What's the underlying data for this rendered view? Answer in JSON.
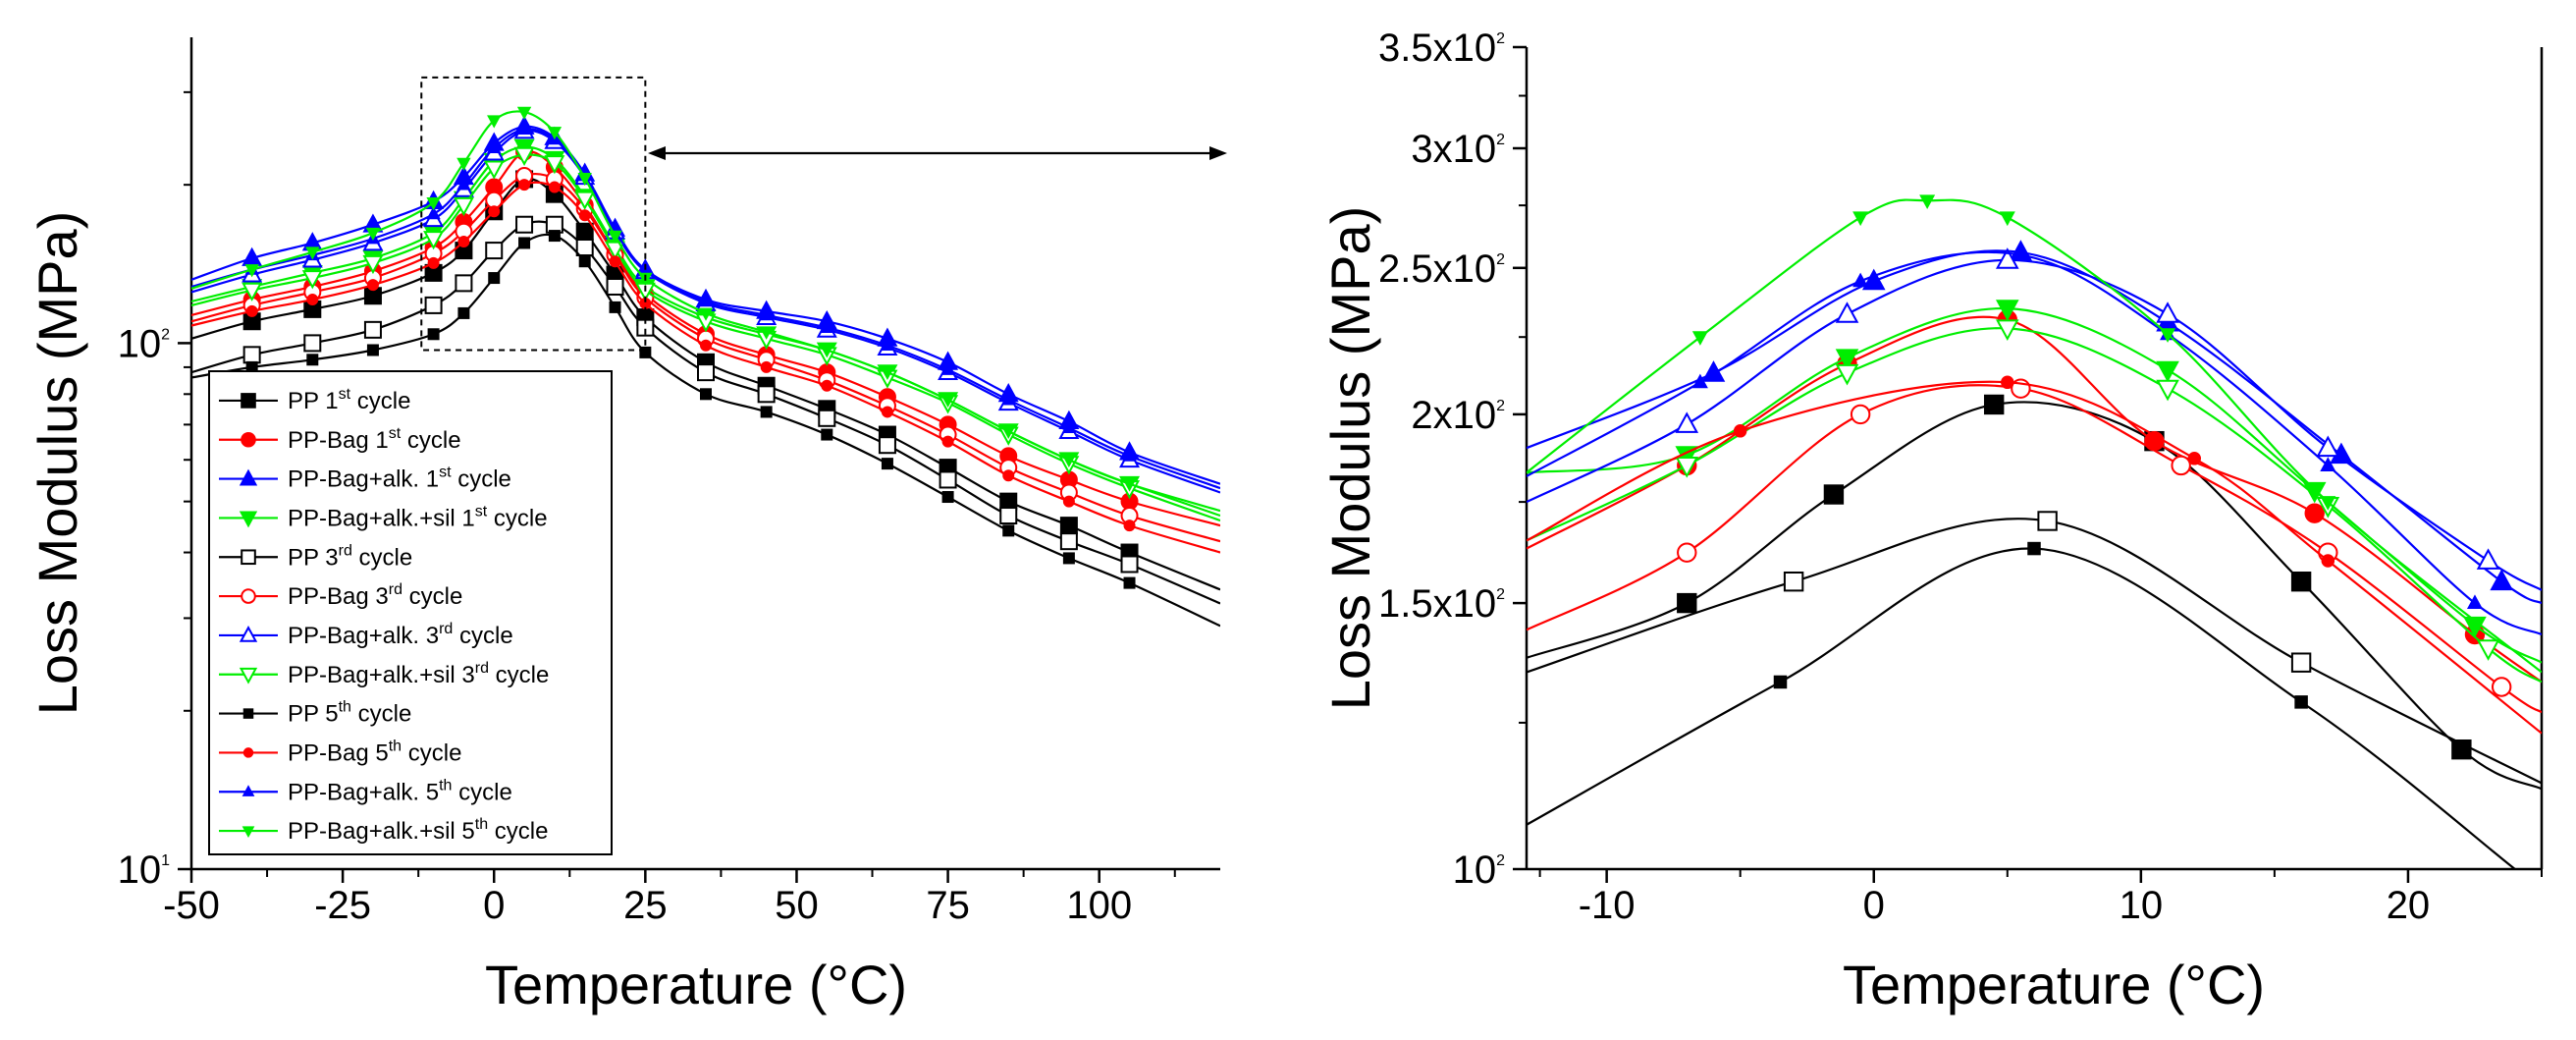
{
  "chart_data": [
    {
      "type": "line",
      "panel": "left",
      "title": "",
      "xlabel": "Temperature (°C)",
      "ylabel": "Loss Modulus (MPa)",
      "x_scale": "linear",
      "y_scale": "log",
      "xlim": [
        -50,
        120
      ],
      "ylim": [
        10,
        350
      ],
      "x_ticks": [
        -50,
        -25,
        0,
        25,
        50,
        75,
        100
      ],
      "x_tick_labels": [
        "-50",
        "-25",
        "0",
        "25",
        "50",
        "75",
        "100"
      ],
      "y_ticks": [
        10,
        100
      ],
      "y_tick_labels": [
        {
          "base": "10",
          "exp": "1"
        },
        {
          "base": "10",
          "exp": "2"
        }
      ],
      "legend_position": "bottom-left",
      "inset_box": {
        "x_range": [
          -12,
          25
        ],
        "y_range": [
          97,
          320
        ]
      },
      "series": [
        {
          "name": "PP 1st cycle",
          "label_parts": [
            "PP 1",
            "st",
            " cycle"
          ],
          "color": "#000000",
          "marker": "square-filled",
          "x": [
            -50,
            -40,
            -30,
            -20,
            -10,
            -5,
            0,
            5,
            10,
            15,
            20,
            25,
            35,
            45,
            55,
            65,
            75,
            85,
            95,
            105,
            120
          ],
          "y": [
            102,
            110,
            116,
            123,
            136,
            150,
            178,
            205,
            192,
            163,
            135,
            112,
            92,
            83,
            75,
            67,
            58,
            50,
            45,
            40,
            34
          ]
        },
        {
          "name": "PP-Bag 1st cycle",
          "label_parts": [
            "PP-Bag 1",
            "st",
            " cycle"
          ],
          "color": "#ff0000",
          "marker": "circle-filled",
          "x": [
            -50,
            -40,
            -30,
            -20,
            -10,
            -5,
            0,
            5,
            10,
            15,
            20,
            25,
            35,
            45,
            55,
            65,
            75,
            85,
            95,
            105,
            120
          ],
          "y": [
            113,
            121,
            128,
            137,
            152,
            170,
            198,
            231,
            216,
            183,
            148,
            124,
            104,
            95,
            88,
            79,
            70,
            61,
            55,
            50,
            45
          ]
        },
        {
          "name": "PP-Bag+alk. 1st cycle",
          "label_parts": [
            "PP-Bag+alk. 1",
            "st",
            " cycle"
          ],
          "color": "#0000ff",
          "marker": "triangle-up-filled",
          "x": [
            -50,
            -40,
            -30,
            -20,
            -10,
            -5,
            0,
            5,
            10,
            15,
            20,
            25,
            35,
            45,
            55,
            65,
            75,
            85,
            95,
            105,
            120
          ],
          "y": [
            132,
            145,
            155,
            168,
            186,
            207,
            240,
            258,
            246,
            210,
            165,
            138,
            121,
            115,
            110,
            102,
            92,
            80,
            71,
            62,
            54
          ]
        },
        {
          "name": "PP-Bag+alk.+sil 1st cycle",
          "label_parts": [
            "PP-Bag+alk.+sil 1",
            "st",
            " cycle"
          ],
          "color": "#00ee00",
          "marker": "triangle-down-filled",
          "x": [
            -50,
            -40,
            -30,
            -20,
            -10,
            -5,
            0,
            5,
            10,
            15,
            20,
            25,
            35,
            45,
            55,
            65,
            75,
            85,
            95,
            105,
            120
          ],
          "y": [
            120,
            128,
            136,
            145,
            162,
            188,
            222,
            236,
            224,
            190,
            153,
            128,
            112,
            104,
            97,
            88,
            78,
            68,
            60,
            54,
            47
          ]
        },
        {
          "name": "PP 3rd cycle",
          "label_parts": [
            "PP 3",
            "rd",
            " cycle"
          ],
          "color": "#000000",
          "marker": "square-open",
          "x": [
            -50,
            -40,
            -30,
            -20,
            -10,
            -5,
            0,
            5,
            10,
            15,
            20,
            25,
            35,
            45,
            55,
            65,
            75,
            85,
            95,
            105,
            120
          ],
          "y": [
            88,
            95,
            100,
            106,
            118,
            130,
            150,
            168,
            168,
            152,
            128,
            107,
            88,
            80,
            72,
            64,
            55,
            47,
            42,
            38,
            32
          ]
        },
        {
          "name": "PP-Bag 3rd cycle",
          "label_parts": [
            "PP-Bag 3",
            "rd",
            " cycle"
          ],
          "color": "#ff0000",
          "marker": "circle-open",
          "x": [
            -50,
            -40,
            -30,
            -20,
            -10,
            -5,
            0,
            5,
            10,
            15,
            20,
            25,
            35,
            45,
            55,
            65,
            75,
            85,
            95,
            105,
            120
          ],
          "y": [
            110,
            118,
            125,
            133,
            148,
            163,
            187,
            208,
            205,
            180,
            147,
            122,
            102,
            93,
            85,
            76,
            67,
            58,
            52,
            47,
            42
          ]
        },
        {
          "name": "PP-Bag+alk. 3rd cycle",
          "label_parts": [
            "PP-Bag+alk. 3",
            "rd",
            " cycle"
          ],
          "color": "#0000ff",
          "marker": "triangle-up-open",
          "x": [
            -50,
            -40,
            -30,
            -20,
            -10,
            -5,
            0,
            5,
            10,
            15,
            20,
            25,
            35,
            45,
            55,
            65,
            75,
            85,
            95,
            105,
            120
          ],
          "y": [
            125,
            135,
            144,
            155,
            172,
            196,
            230,
            253,
            242,
            207,
            163,
            137,
            119,
            112,
            106,
            98,
            88,
            77,
            68,
            60,
            52
          ]
        },
        {
          "name": "PP-Bag+alk.+sil 3rd cycle",
          "label_parts": [
            "PP-Bag+alk.+sil 3",
            "rd",
            " cycle"
          ],
          "color": "#00ee00",
          "marker": "triangle-down-open",
          "x": [
            -50,
            -40,
            -30,
            -20,
            -10,
            -5,
            0,
            5,
            10,
            15,
            20,
            25,
            35,
            45,
            55,
            65,
            75,
            85,
            95,
            105,
            120
          ],
          "y": [
            118,
            126,
            133,
            142,
            158,
            183,
            215,
            228,
            220,
            188,
            151,
            126,
            110,
            102,
            95,
            86,
            77,
            67,
            59,
            53,
            46
          ]
        },
        {
          "name": "PP 5th cycle",
          "label_parts": [
            "PP 5",
            "th",
            " cycle"
          ],
          "color": "#000000",
          "marker": "small-square",
          "x": [
            -50,
            -40,
            -30,
            -20,
            -10,
            -5,
            0,
            5,
            10,
            15,
            20,
            25,
            35,
            45,
            55,
            65,
            75,
            85,
            95,
            105,
            120
          ],
          "y": [
            86,
            90,
            93,
            97,
            104,
            114,
            133,
            155,
            160,
            143,
            117,
            96,
            80,
            74,
            67,
            59,
            51,
            44,
            39,
            35,
            29
          ]
        },
        {
          "name": "PP-Bag 5th cycle",
          "label_parts": [
            "PP-Bag 5",
            "th",
            " cycle"
          ],
          "color": "#ff0000",
          "marker": "small-circle",
          "x": [
            -50,
            -40,
            -30,
            -20,
            -10,
            -5,
            0,
            5,
            10,
            15,
            20,
            25,
            35,
            45,
            55,
            65,
            75,
            85,
            95,
            105,
            120
          ],
          "y": [
            108,
            115,
            121,
            129,
            142,
            156,
            178,
            200,
            198,
            175,
            143,
            119,
            99,
            90,
            83,
            74,
            65,
            56,
            50,
            45,
            40
          ]
        },
        {
          "name": "PP-Bag+alk. 5th cycle",
          "label_parts": [
            "PP-Bag+alk. 5",
            "th",
            " cycle"
          ],
          "color": "#0000ff",
          "marker": "small-triangle-up",
          "x": [
            -50,
            -40,
            -30,
            -20,
            -10,
            -5,
            0,
            5,
            10,
            15,
            20,
            25,
            35,
            45,
            55,
            65,
            75,
            85,
            95,
            105,
            120
          ],
          "y": [
            128,
            138,
            147,
            158,
            176,
            200,
            235,
            255,
            244,
            208,
            164,
            137,
            120,
            113,
            107,
            99,
            89,
            78,
            69,
            61,
            53
          ]
        },
        {
          "name": "PP-Bag+alk.+sil 5th cycle",
          "label_parts": [
            "PP-Bag+alk.+sil 5",
            "th",
            " cycle"
          ],
          "color": "#00ee00",
          "marker": "small-triangle-down",
          "x": [
            -50,
            -40,
            -30,
            -20,
            -10,
            -5,
            0,
            5,
            10,
            15,
            20,
            25,
            35,
            45,
            55,
            65,
            75,
            85,
            95,
            105,
            120
          ],
          "y": [
            127,
            138,
            149,
            162,
            185,
            220,
            265,
            275,
            252,
            206,
            160,
            133,
            114,
            105,
            97,
            88,
            78,
            68,
            60,
            54,
            48
          ]
        }
      ]
    },
    {
      "type": "line",
      "panel": "right",
      "title": "",
      "xlabel": "Temperature (°C)",
      "ylabel": "Loss Modulus (MPa)",
      "x_scale": "linear",
      "y_scale": "log",
      "xlim": [
        -13,
        25
      ],
      "ylim": [
        100,
        350
      ],
      "x_ticks": [
        -10,
        0,
        10,
        20
      ],
      "x_tick_labels": [
        "-10",
        "0",
        "10",
        "20"
      ],
      "y_ticks": [
        100,
        150,
        200,
        250,
        300,
        350
      ],
      "y_tick_labels": [
        {
          "base": "10",
          "exp": "2"
        },
        {
          "base": "1.5x10",
          "exp": "2"
        },
        {
          "base": "2x10",
          "exp": "2"
        },
        {
          "base": "2.5x10",
          "exp": "2"
        },
        {
          "base": "3x10",
          "exp": "2"
        },
        {
          "base": "3.5x10",
          "exp": "2"
        }
      ],
      "series": [
        {
          "name": "PP 1st cycle",
          "color": "#000000",
          "marker": "square-filled",
          "x": [
            -13,
            -7,
            -1.5,
            4.5,
            10.5,
            16,
            22,
            25
          ],
          "y": [
            138,
            150,
            177,
            203,
            192,
            155,
            120,
            113
          ]
        },
        {
          "name": "PP-Bag 1st cycle",
          "color": "#ff0000",
          "marker": "circle-filled",
          "x": [
            -13,
            -7,
            -1,
            5,
            10.5,
            16.5,
            22.5,
            25
          ],
          "y": [
            163,
            185,
            216,
            231,
            192,
            172,
            143,
            133
          ]
        },
        {
          "name": "PP-Bag+alk. 1st cycle",
          "color": "#0000ff",
          "marker": "triangle-up-filled",
          "x": [
            -13,
            -6,
            0,
            5.5,
            11,
            17.5,
            23.5,
            25
          ],
          "y": [
            190,
            213,
            245,
            256,
            230,
            188,
            155,
            150
          ]
        },
        {
          "name": "PP-Bag+alk.+sil 1st cycle",
          "color": "#00ee00",
          "marker": "triangle-down-filled",
          "x": [
            -13,
            -7,
            -1,
            5,
            11,
            16.5,
            22.5,
            25
          ],
          "y": [
            183,
            188,
            218,
            235,
            214,
            178,
            145,
            137
          ]
        },
        {
          "name": "PP 3rd cycle",
          "color": "#000000",
          "marker": "square-open",
          "x": [
            -13,
            -3,
            6.5,
            16,
            25
          ],
          "y": [
            135,
            155,
            170,
            137,
            114
          ]
        },
        {
          "name": "PP-Bag 3rd cycle",
          "color": "#ff0000",
          "marker": "circle-open",
          "x": [
            -13,
            -7,
            -0.5,
            5.5,
            11.5,
            17,
            23.5,
            25
          ],
          "y": [
            144,
            162,
            200,
            208,
            185,
            162,
            132,
            127
          ]
        },
        {
          "name": "PP-Bag+alk. 3rd cycle",
          "color": "#0000ff",
          "marker": "triangle-up-open",
          "x": [
            -13,
            -7,
            -1,
            5,
            11,
            17,
            23,
            25
          ],
          "y": [
            175,
            197,
            233,
            253,
            233,
            190,
            160,
            153
          ]
        },
        {
          "name": "PP-Bag+alk.+sil 3rd cycle",
          "color": "#00ee00",
          "marker": "triangle-down-open",
          "x": [
            -13,
            -7,
            -1,
            5,
            11,
            17,
            23,
            25
          ],
          "y": [
            165,
            185,
            213,
            228,
            208,
            174,
            140,
            133
          ]
        },
        {
          "name": "PP 5th cycle",
          "color": "#000000",
          "marker": "small-square",
          "x": [
            -13,
            -3.5,
            6,
            16,
            24
          ],
          "y": [
            107,
            133,
            163,
            129,
            100
          ]
        },
        {
          "name": "PP-Bag 5th cycle",
          "color": "#ff0000",
          "marker": "small-circle",
          "x": [
            -13,
            -5,
            5,
            12,
            17,
            25
          ],
          "y": [
            165,
            195,
            210,
            187,
            160,
            123
          ]
        },
        {
          "name": "PP-Bag+alk. 5th cycle",
          "color": "#0000ff",
          "marker": "small-triangle-up",
          "x": [
            -13,
            -6.5,
            -0.5,
            5.5,
            11,
            17,
            22.5,
            25
          ],
          "y": [
            182,
            210,
            245,
            255,
            226,
            185,
            150,
            143
          ]
        },
        {
          "name": "PP-Bag+alk.+sil 5th cycle",
          "color": "#00ee00",
          "marker": "small-triangle-down",
          "x": [
            -13,
            -6.5,
            -0.5,
            2,
            5,
            11,
            17,
            25
          ],
          "y": [
            183,
            225,
            270,
            277,
            270,
            226,
            175,
            135
          ]
        }
      ]
    }
  ]
}
